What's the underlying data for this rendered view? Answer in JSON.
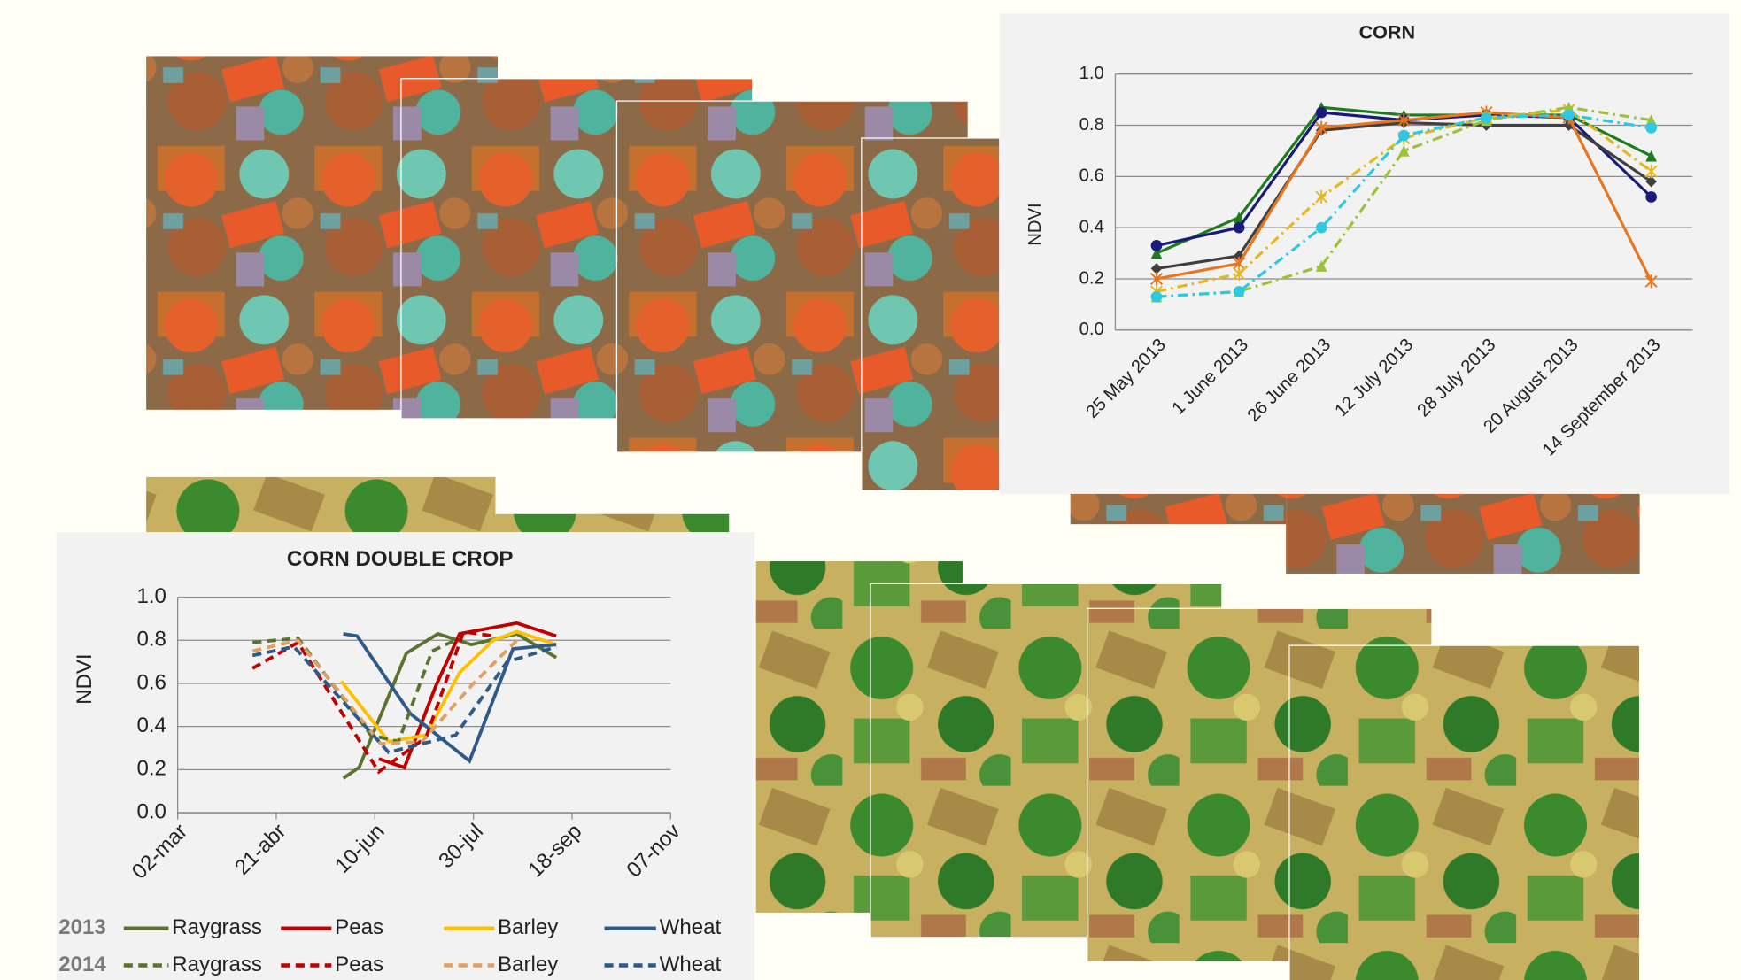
{
  "chart_data": [
    {
      "type": "line",
      "title": "CORN",
      "y_label": "NDVI",
      "categories": [
        "25 May 2013",
        "1 June 2013",
        "26 June 2013",
        "12 July 2013",
        "28 July 2013",
        "20 August 2013",
        "14 September 2013"
      ],
      "ylim": [
        0,
        1
      ],
      "yticks": [
        {
          "value": 0,
          "label": "0.0"
        },
        0.2,
        0.4,
        0.6,
        0.8,
        {
          "value": 1,
          "label": "1.0"
        }
      ],
      "grid": true,
      "series": [
        {
          "color": "#1e7b1e",
          "marker": "triangle",
          "dash": "solid",
          "values": [
            0.3,
            0.44,
            0.87,
            0.84,
            0.84,
            0.84,
            0.68
          ]
        },
        {
          "color": "#1a1a7a",
          "marker": "circle",
          "dash": "solid",
          "values": [
            0.33,
            0.4,
            0.85,
            0.82,
            0.84,
            0.83,
            0.52
          ]
        },
        {
          "color": "#404040",
          "marker": "diamond",
          "dash": "solid",
          "values": [
            0.24,
            0.29,
            0.78,
            0.81,
            0.8,
            0.8,
            0.58
          ]
        },
        {
          "color": "#e8761e",
          "marker": "star",
          "dash": "solid",
          "values": [
            0.2,
            0.26,
            0.79,
            0.82,
            0.85,
            0.83,
            0.19
          ]
        },
        {
          "color": "#e6b820",
          "marker": "star",
          "dash": "dashdot",
          "values": [
            0.15,
            0.22,
            0.52,
            0.75,
            0.83,
            0.86,
            0.62
          ]
        },
        {
          "color": "#9cc23a",
          "marker": "triangle",
          "dash": "dashdot",
          "values": [
            0.13,
            0.15,
            0.25,
            0.7,
            0.82,
            0.87,
            0.82
          ]
        },
        {
          "color": "#2ec9e0",
          "marker": "circle",
          "dash": "dashdot",
          "values": [
            0.13,
            0.15,
            0.4,
            0.76,
            0.83,
            0.84,
            0.79
          ]
        }
      ]
    },
    {
      "type": "line",
      "title": "CORN DOUBLE CROP",
      "y_label": "NDVI",
      "xlim": [
        61,
        311
      ],
      "xticks": [
        {
          "value": 61,
          "label": "02-mar"
        },
        {
          "value": 111,
          "label": "21-abr"
        },
        {
          "value": 161,
          "label": "10-jun"
        },
        {
          "value": 211,
          "label": "30-jul"
        },
        {
          "value": 261,
          "label": "18-sep"
        },
        {
          "value": 311,
          "label": "07-nov"
        }
      ],
      "ylim": [
        0,
        1
      ],
      "yticks": [
        {
          "value": 0,
          "label": "0.0"
        },
        0.2,
        0.4,
        0.6,
        0.8,
        {
          "value": 1,
          "label": "1.0"
        }
      ],
      "grid": true,
      "groups": [
        {
          "label": "2013",
          "dash": "solid",
          "series": [
            {
              "name": "Raygrass",
              "color": "#5b7330",
              "x": [
                145,
                153,
                177,
                193,
                210,
                233,
                253
              ],
              "values": [
                0.16,
                0.21,
                0.74,
                0.83,
                0.78,
                0.83,
                0.72
              ]
            },
            {
              "name": "Peas",
              "color": "#c00000",
              "x": [
                163,
                176,
                192,
                204,
                233,
                253
              ],
              "values": [
                0.25,
                0.21,
                0.59,
                0.83,
                0.88,
                0.82
              ]
            },
            {
              "name": "Barley",
              "color": "#ffc000",
              "x": [
                144,
                168,
                187,
                204,
                221,
                233,
                253
              ],
              "values": [
                0.61,
                0.33,
                0.36,
                0.65,
                0.8,
                0.84,
                0.78
              ]
            },
            {
              "name": "Wheat",
              "color": "#2e5a88",
              "x": [
                145,
                152,
                179,
                209,
                231,
                253
              ],
              "values": [
                0.83,
                0.82,
                0.46,
                0.24,
                0.76,
                0.78
              ]
            }
          ]
        },
        {
          "label": "2014",
          "dash": "dashed",
          "series": [
            {
              "name": "Raygrass",
              "color": "#5b7330",
              "x": [
                99,
                122,
                159,
                173,
                190,
                204
              ],
              "values": [
                0.79,
                0.81,
                0.36,
                0.33,
                0.75,
                0.81
              ]
            },
            {
              "name": "Peas",
              "color": "#c00000",
              "x": [
                99,
                122,
                163,
                187,
                206,
                221
              ],
              "values": [
                0.67,
                0.79,
                0.19,
                0.35,
                0.84,
                0.82
              ]
            },
            {
              "name": "Barley",
              "color": "#e0a060",
              "x": [
                99,
                122,
                164,
                185,
                210,
                233
              ],
              "values": [
                0.75,
                0.8,
                0.32,
                0.33,
                0.59,
                0.8
              ]
            },
            {
              "name": "Wheat",
              "color": "#2e5a88",
              "x": [
                99,
                120,
                168,
                202,
                228,
                253
              ],
              "values": [
                0.73,
                0.77,
                0.28,
                0.36,
                0.7,
                0.77
              ]
            }
          ]
        }
      ]
    }
  ]
}
